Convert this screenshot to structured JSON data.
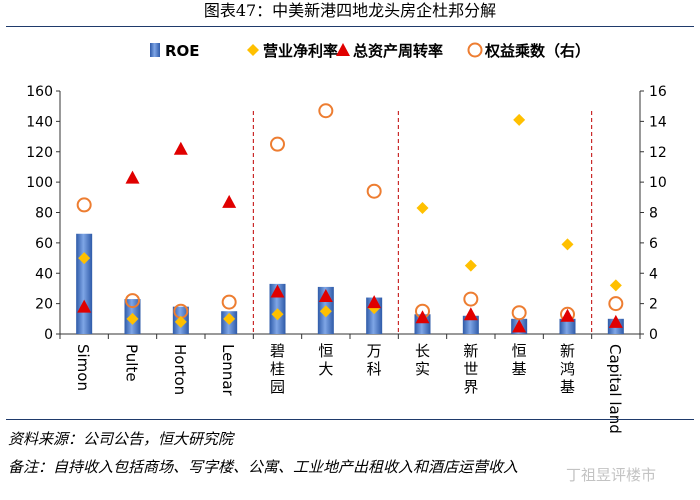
{
  "title": "图表47：中美新港四地龙头房企杜邦分解",
  "source_note": "资料来源：公司公告，恒大研究院",
  "remark_note": "备注：自持收入包括商场、写字楼、公寓、工业地产出租收入和酒店运营收入",
  "watermark": "丁祖昱评楼市",
  "colors": {
    "roe_bar": "#4472c4",
    "net_margin": "#ffc000",
    "asset_turnover": "#e00000",
    "equity_multiplier": "#ed7d31",
    "divider": "#c00000",
    "rule": "#1f3a6b"
  },
  "chart_data": {
    "type": "bar",
    "categories": [
      "Simon",
      "Pulte",
      "Horton",
      "Lennar",
      "碧桂园",
      "恒大",
      "万科",
      "长实",
      "新世界",
      "恒基",
      "新鸿基",
      "Capital land"
    ],
    "category_label_vertical": [
      false,
      false,
      false,
      false,
      true,
      true,
      true,
      true,
      true,
      true,
      true,
      false
    ],
    "series": [
      {
        "name": "ROE",
        "kind": "bar",
        "axis": "left",
        "marker": "bar",
        "values": [
          66,
          23,
          18,
          15,
          33,
          31,
          24,
          13,
          12,
          10,
          10,
          10
        ]
      },
      {
        "name": "营业净利率",
        "kind": "marker",
        "axis": "left",
        "marker": "diamond",
        "values": [
          50,
          10,
          8,
          10,
          13,
          15,
          17,
          83,
          45,
          141,
          59,
          32
        ]
      },
      {
        "name": "总资产周转率",
        "kind": "marker",
        "axis": "left",
        "marker": "triangle",
        "values": [
          18,
          103,
          122,
          87,
          28,
          25,
          21,
          11,
          13,
          5,
          12,
          8
        ]
      },
      {
        "name": "权益乘数（右）",
        "kind": "marker",
        "axis": "right",
        "marker": "circle",
        "values": [
          8.5,
          2.2,
          1.5,
          2.1,
          12.5,
          14.7,
          9.4,
          1.5,
          2.3,
          1.4,
          1.3,
          2.0
        ]
      }
    ],
    "y_left": {
      "min": 0,
      "max": 160,
      "ticks": [
        0,
        20,
        40,
        60,
        80,
        100,
        120,
        140,
        160
      ]
    },
    "y_right": {
      "min": 0,
      "max": 16,
      "ticks": [
        0,
        2,
        4,
        6,
        8,
        10,
        12,
        14,
        16
      ]
    },
    "group_dividers_after": [
      "Lennar",
      "万科",
      "新鸿基"
    ],
    "legend_position": "top",
    "grid": false
  }
}
